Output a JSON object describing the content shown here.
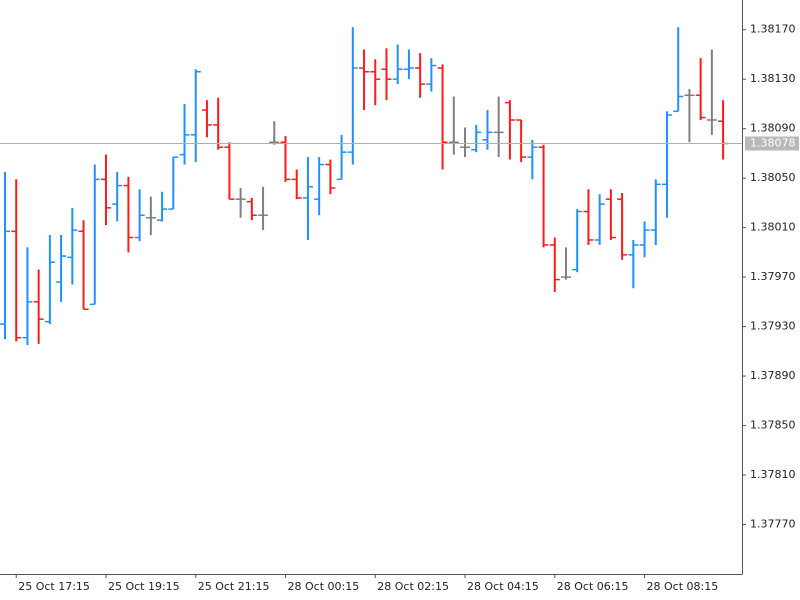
{
  "chart_data": {
    "type": "ohlc",
    "up_color": "#1e90ff",
    "down_color": "#ff1a1a",
    "doji_color": "#808080",
    "categories": [
      null,
      "25 Oct 17:15",
      null,
      null,
      null,
      null,
      null,
      null,
      null,
      "25 Oct 19:15",
      null,
      null,
      null,
      null,
      null,
      null,
      null,
      "25 Oct 21:15",
      null,
      null,
      null,
      null,
      null,
      null,
      null,
      "28 Oct 00:15",
      null,
      null,
      null,
      null,
      null,
      null,
      null,
      "28 Oct 02:15",
      null,
      null,
      null,
      null,
      null,
      null,
      null,
      "28 Oct 04:15",
      null,
      null,
      null,
      null,
      null,
      null,
      null,
      "28 Oct 06:15",
      null,
      null,
      null,
      null,
      null,
      null,
      null,
      "28 Oct 08:15",
      null,
      null,
      null,
      null,
      null,
      null,
      null
    ],
    "open": [
      1.37932,
      1.38007,
      1.37921,
      1.3795,
      1.37934,
      1.37966,
      1.37986,
      1.38007,
      1.37948,
      1.38049,
      1.38029,
      1.38044,
      1.38002,
      1.38018,
      1.38016,
      1.38025,
      1.38069,
      1.38085,
      1.38105,
      1.38093,
      1.38075,
      1.38033,
      1.38031,
      1.3802,
      1.38079,
      1.38079,
      1.38049,
      1.38034,
      1.38033,
      1.38061,
      1.38049,
      1.38071,
      1.38139,
      1.38136,
      1.38138,
      1.3813,
      1.38138,
      1.38139,
      1.38126,
      1.38139,
      1.38079,
      1.38075,
      1.38073,
      1.38081,
      1.38087,
      1.38111,
      1.38097,
      1.38067,
      1.38075,
      1.37996,
      1.3797,
      1.37976,
      1.38023,
      1.38,
      1.38033,
      1.38033,
      1.37988,
      1.37996,
      1.38008,
      1.38045,
      1.38104,
      1.38117,
      1.38117,
      1.38097,
      1.38096
    ],
    "high": [
      1.38055,
      1.38049,
      1.37994,
      1.37976,
      1.38004,
      1.38004,
      1.38026,
      1.38016,
      1.38061,
      1.38069,
      1.38055,
      1.38051,
      1.38041,
      1.38035,
      1.38039,
      1.38067,
      1.3811,
      1.38138,
      1.38113,
      1.38115,
      1.38079,
      1.38042,
      1.38034,
      1.38043,
      1.38096,
      1.38084,
      1.38057,
      1.38067,
      1.38067,
      1.38065,
      1.38085,
      1.38172,
      1.38154,
      1.38146,
      1.38155,
      1.38158,
      1.38154,
      1.38151,
      1.38147,
      1.38142,
      1.38116,
      1.38091,
      1.38093,
      1.38105,
      1.38116,
      1.38113,
      1.38097,
      1.38081,
      1.38077,
      1.38002,
      1.37994,
      1.38025,
      1.38041,
      1.38037,
      1.38041,
      1.38038,
      1.38,
      1.38015,
      1.38049,
      1.38104,
      1.38172,
      1.38122,
      1.38147,
      1.38154,
      1.38113
    ],
    "low": [
      1.3792,
      1.37918,
      1.37915,
      1.37916,
      1.37932,
      1.3795,
      1.37964,
      1.37944,
      1.37948,
      1.38012,
      1.38015,
      1.3799,
      1.37999,
      1.38004,
      1.38015,
      1.38025,
      1.38061,
      1.38063,
      1.38083,
      1.38073,
      1.38033,
      1.38018,
      1.38016,
      1.38008,
      1.38077,
      1.38047,
      1.38033,
      1.38,
      1.3802,
      1.38037,
      1.38049,
      1.38061,
      1.38105,
      1.38109,
      1.38113,
      1.38126,
      1.3813,
      1.38115,
      1.3812,
      1.38057,
      1.38069,
      1.38067,
      1.38071,
      1.38073,
      1.38067,
      1.38065,
      1.38063,
      1.38049,
      1.37994,
      1.37958,
      1.37968,
      1.37974,
      1.37996,
      1.37996,
      1.38,
      1.37984,
      1.37961,
      1.37986,
      1.37996,
      1.38018,
      1.38104,
      1.38079,
      1.38097,
      1.38085,
      1.38065
    ],
    "close": [
      1.38007,
      1.37921,
      1.3795,
      1.37936,
      1.37982,
      1.37987,
      1.38008,
      1.37944,
      1.38049,
      1.38026,
      1.38044,
      1.38002,
      1.3802,
      1.38018,
      1.38025,
      1.38067,
      1.38085,
      1.38136,
      1.38093,
      1.38075,
      1.38033,
      1.38033,
      1.3802,
      1.3802,
      1.38079,
      1.38049,
      1.38034,
      1.38043,
      1.38061,
      1.38042,
      1.38071,
      1.38139,
      1.38136,
      1.3813,
      1.3813,
      1.38138,
      1.38139,
      1.38126,
      1.38141,
      1.38079,
      1.38079,
      1.38075,
      1.38087,
      1.38087,
      1.38087,
      1.38097,
      1.38067,
      1.38075,
      1.37996,
      1.37968,
      1.3797,
      1.38023,
      1.38,
      1.38029,
      1.38002,
      1.37988,
      1.37996,
      1.38008,
      1.38045,
      1.38101,
      1.38116,
      1.38117,
      1.38099,
      1.38097,
      1.38078
    ],
    "ylim": [
      1.3773,
      1.38194
    ],
    "yticks": [
      {
        "value": 1.3817,
        "label": "1.38170"
      },
      {
        "value": 1.3813,
        "label": "1.38130"
      },
      {
        "value": 1.3809,
        "label": "1.38090"
      },
      {
        "value": 1.3805,
        "label": "1.38050"
      },
      {
        "value": 1.3801,
        "label": "1.38010"
      },
      {
        "value": 1.3797,
        "label": "1.37970"
      },
      {
        "value": 1.3793,
        "label": "1.37930"
      },
      {
        "value": 1.3789,
        "label": "1.37890"
      },
      {
        "value": 1.3785,
        "label": "1.37850"
      },
      {
        "value": 1.3781,
        "label": "1.37810"
      },
      {
        "value": 1.3777,
        "label": "1.37770"
      }
    ],
    "price_line": {
      "value": 1.38078,
      "label": "1.38078"
    },
    "grid": false
  }
}
